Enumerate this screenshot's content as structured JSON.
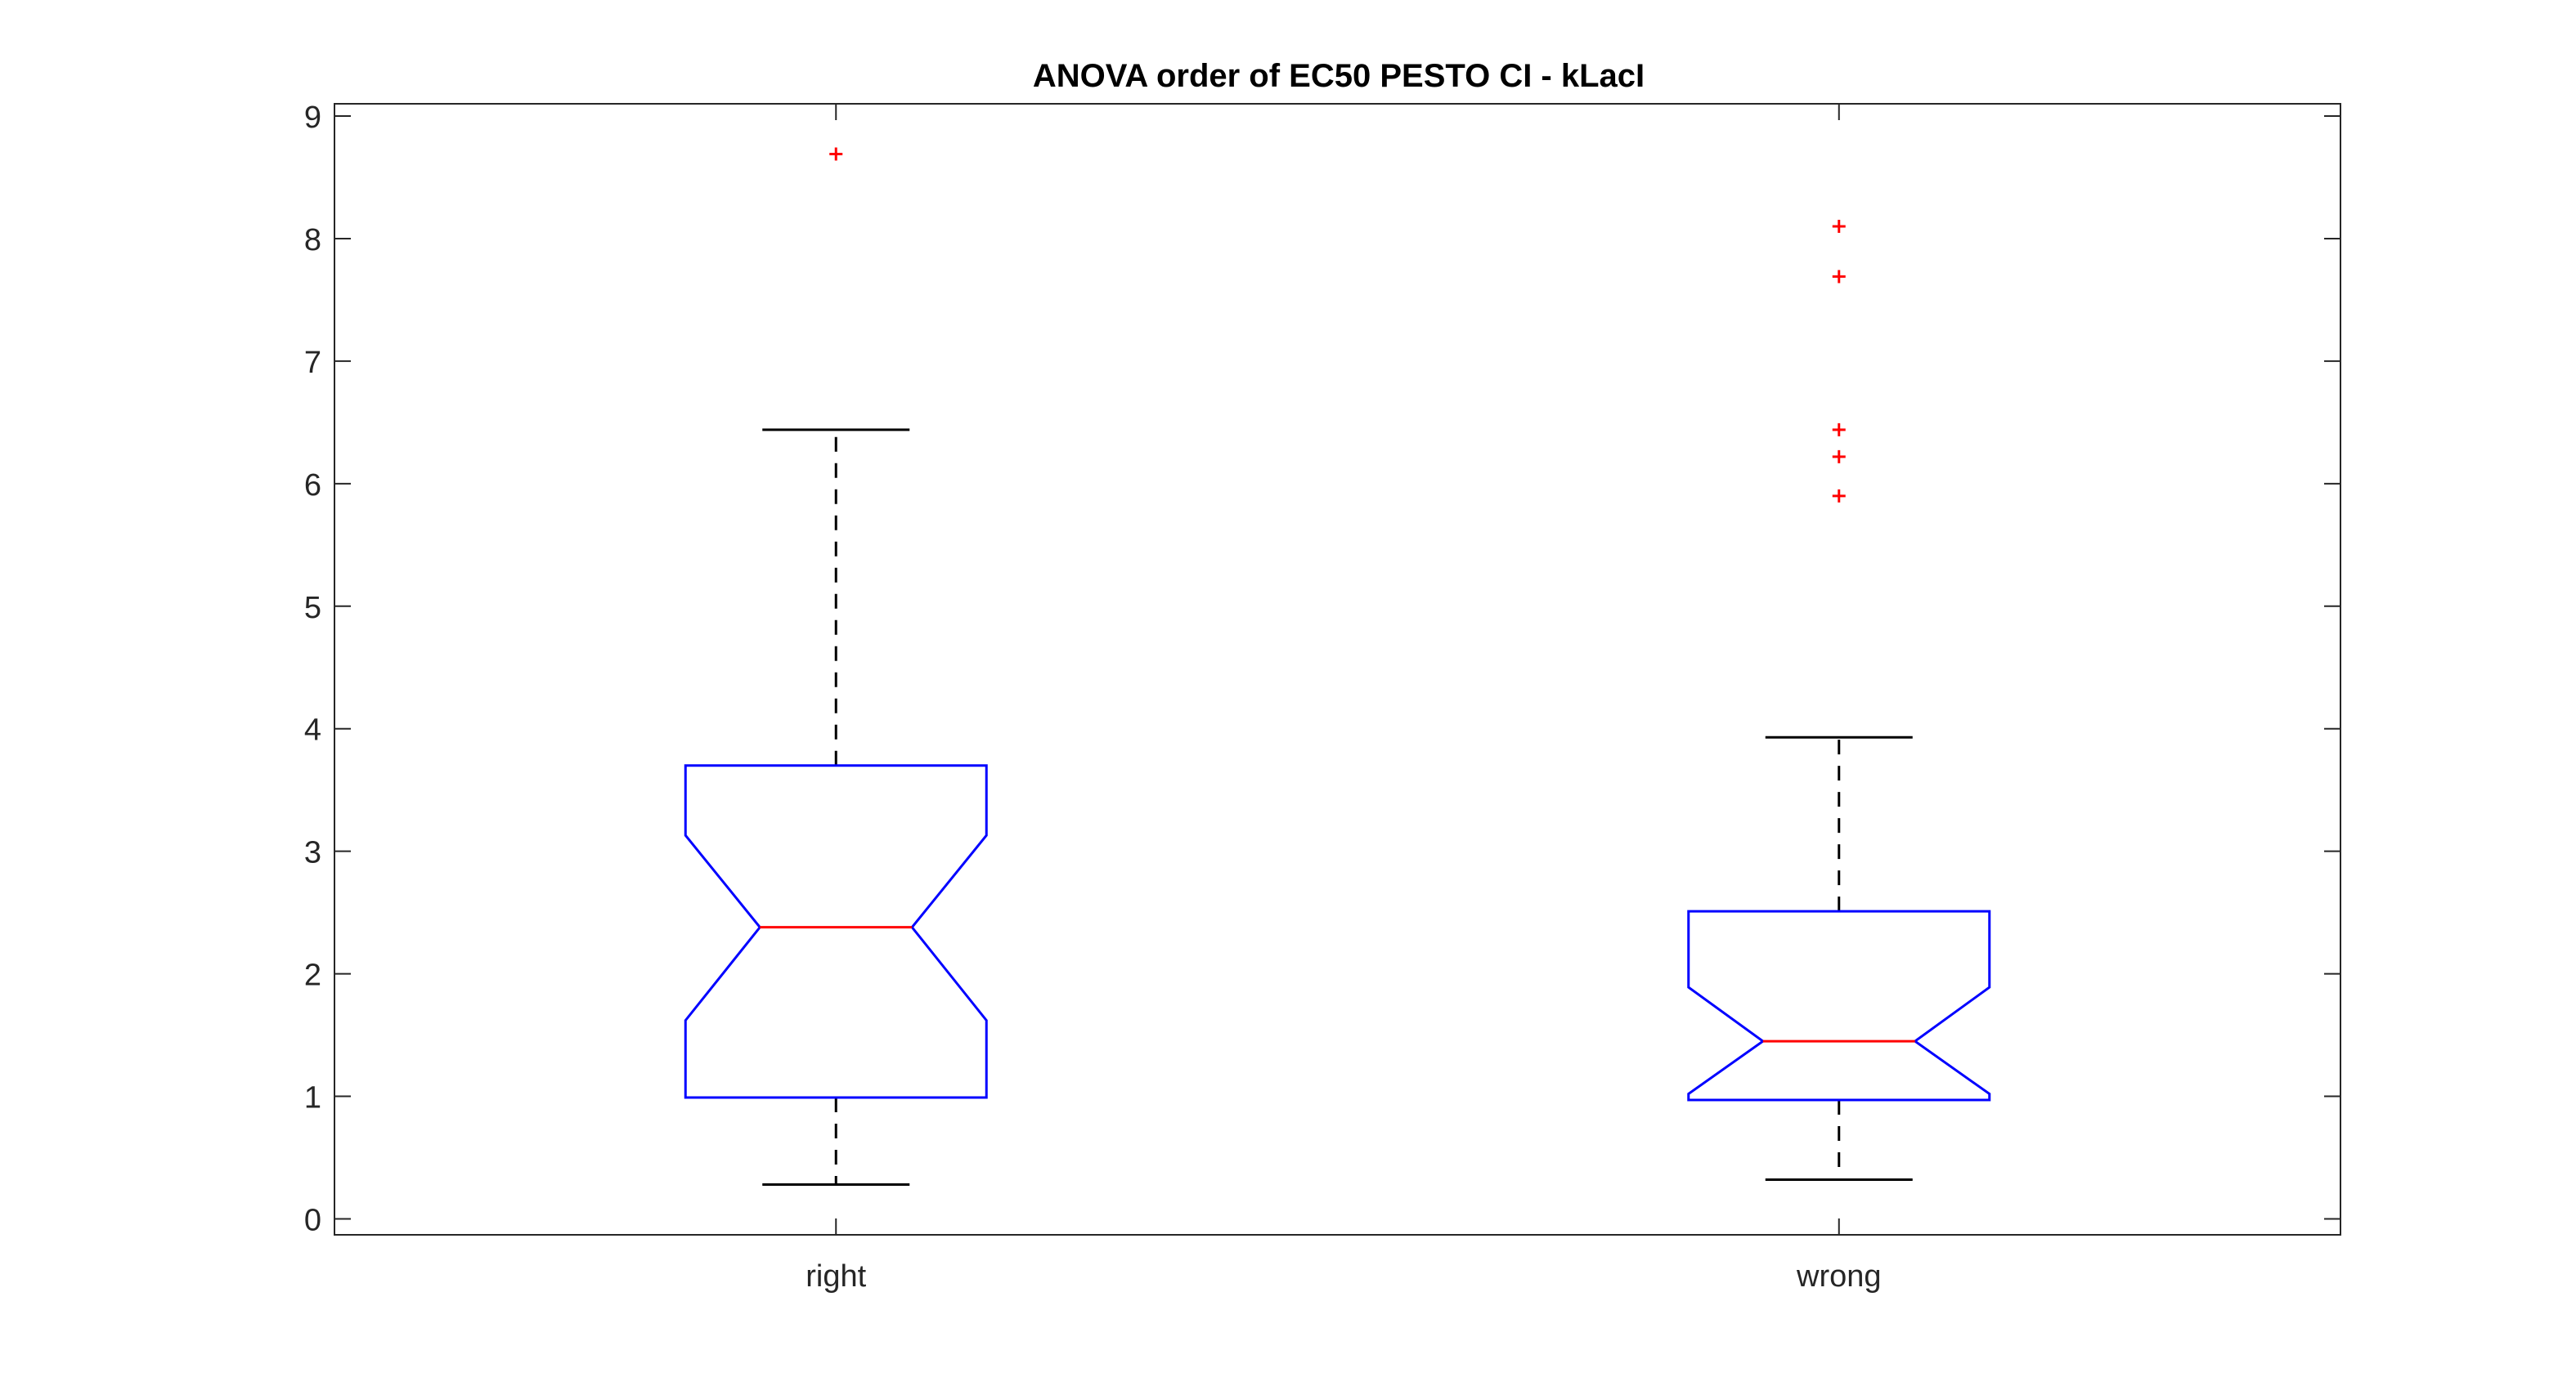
{
  "chart_data": {
    "type": "boxplot",
    "notched": true,
    "title": "ANOVA order of EC50 PESTO CI - kLacI",
    "xlabel": "",
    "ylabel": "",
    "ylim": [
      -0.13,
      9.1
    ],
    "yticks": [
      0,
      1,
      2,
      3,
      4,
      5,
      6,
      7,
      8,
      9
    ],
    "ytick_labels": [
      "0",
      "1",
      "2",
      "3",
      "4",
      "5",
      "6",
      "7",
      "8",
      "9"
    ],
    "grid": false,
    "categories": [
      "right",
      "wrong"
    ],
    "boxes": [
      {
        "label": "right",
        "whisker_low": 0.28,
        "q1": 0.99,
        "notch_low": 1.62,
        "median": 2.38,
        "notch_high": 3.13,
        "q3": 3.7,
        "whisker_high": 6.44,
        "outliers": [
          8.69
        ]
      },
      {
        "label": "wrong",
        "whisker_low": 0.32,
        "q1": 0.97,
        "notch_low": 1.02,
        "median": 1.45,
        "notch_high": 1.89,
        "q3": 2.51,
        "whisker_high": 3.93,
        "outliers": [
          5.9,
          6.22,
          6.44,
          7.69,
          8.1
        ]
      }
    ],
    "colors": {
      "box": "#0000ff",
      "median": "#ff0000",
      "whisker": "#000000",
      "outlier": "#ff0000",
      "axes": "#262626"
    }
  }
}
